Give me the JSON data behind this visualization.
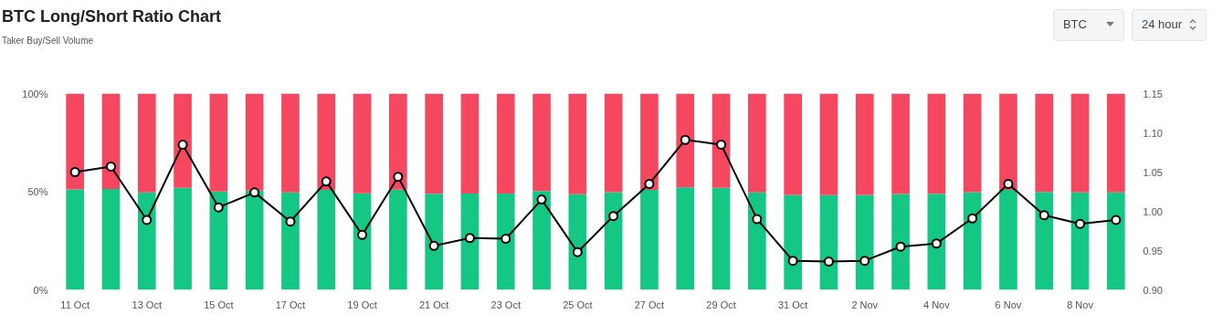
{
  "chart_data": {
    "type": "bar",
    "title": "BTC Long/Short Ratio Chart",
    "subtitle": "Taker Buy/Sell Volume",
    "annotations": [
      "BTC",
      "24 hour"
    ],
    "categories": [
      "11 Oct",
      null,
      "13 Oct",
      null,
      "15 Oct",
      null,
      "17 Oct",
      null,
      "19 Oct",
      null,
      "21 Oct",
      null,
      "23 Oct",
      null,
      "25 Oct",
      null,
      "27 Oct",
      null,
      "29 Oct",
      null,
      "31 Oct",
      null,
      "2 Nov",
      null,
      "4 Nov",
      null,
      "6 Nov",
      null,
      "8 Nov",
      null
    ],
    "stacked": true,
    "series": [
      {
        "color": "#14c784",
        "values": [
          51.2,
          51.4,
          49.7,
          52.0,
          50.1,
          50.6,
          49.7,
          50.9,
          49.2,
          51.1,
          48.9,
          49.1,
          49.1,
          50.4,
          48.7,
          49.8,
          50.9,
          52.2,
          52.0,
          49.7,
          48.4,
          48.3,
          48.4,
          48.8,
          49.0,
          49.8,
          50.9,
          49.9,
          49.6,
          49.7
        ]
      },
      {
        "color": "#f5475f",
        "values": [
          48.8,
          48.6,
          50.3,
          48.0,
          49.9,
          49.4,
          50.3,
          49.1,
          50.8,
          48.9,
          51.1,
          50.9,
          50.9,
          49.6,
          51.3,
          50.2,
          49.1,
          47.8,
          48.0,
          50.3,
          51.6,
          51.7,
          51.6,
          51.2,
          51.0,
          50.2,
          49.1,
          50.1,
          50.4,
          50.3
        ]
      },
      {
        "type": "line",
        "axis": "y2",
        "color": "#000000",
        "marker": "circle",
        "values": [
          1.05,
          1.057,
          0.989,
          1.085,
          1.005,
          1.024,
          0.987,
          1.038,
          0.97,
          1.044,
          0.956,
          0.966,
          0.965,
          1.015,
          0.948,
          0.994,
          1.035,
          1.091,
          1.085,
          0.99,
          0.937,
          0.936,
          0.937,
          0.955,
          0.959,
          0.991,
          1.035,
          0.995,
          0.984,
          0.989
        ]
      }
    ],
    "ylim": [
      0,
      100
    ],
    "yticks": [
      {
        "value": 0,
        "label": "0%"
      },
      {
        "value": 50,
        "label": "50%"
      },
      {
        "value": 100,
        "label": "100%"
      }
    ],
    "y2lim": [
      0.9,
      1.15
    ],
    "y2ticks": [
      {
        "value": 0.9,
        "label": "0.90"
      },
      {
        "value": 0.95,
        "label": "0.95"
      },
      {
        "value": 1.0,
        "label": "1.00"
      },
      {
        "value": 1.05,
        "label": "1.05"
      },
      {
        "value": 1.1,
        "label": "1.10"
      },
      {
        "value": 1.15,
        "label": "1.15"
      }
    ]
  }
}
